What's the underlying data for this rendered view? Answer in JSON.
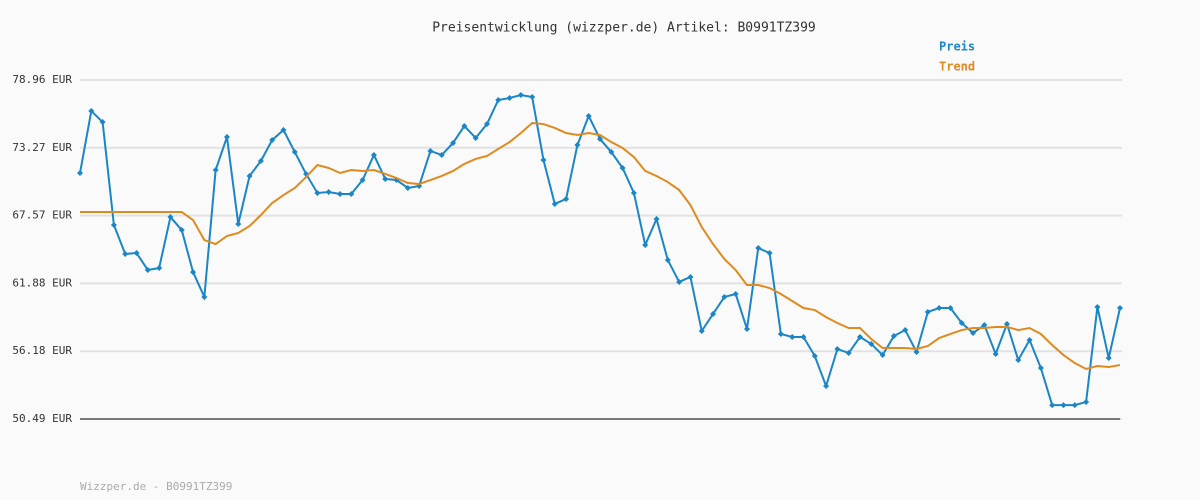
{
  "chart_data": {
    "type": "line",
    "title": "Preisentwicklung (wizzper.de) Artikel: B0991TZ399",
    "footer": "Wizzper.de - B0991TZ399",
    "ylim": [
      50.49,
      78.96
    ],
    "yticks": [
      {
        "value": 50.49,
        "label": "50.49 EUR"
      },
      {
        "value": 56.18,
        "label": "56.18 EUR"
      },
      {
        "value": 61.88,
        "label": "61.88 EUR"
      },
      {
        "value": 67.57,
        "label": "67.57 EUR"
      },
      {
        "value": 73.27,
        "label": "73.27 EUR"
      },
      {
        "value": 78.96,
        "label": "78.96 EUR"
      }
    ],
    "grid": true,
    "legend": "top-right",
    "series": [
      {
        "name": "Preis",
        "color": "#1a86c8",
        "markers": true,
        "values": [
          71.15,
          76.36,
          75.43,
          66.78,
          64.35,
          64.43,
          63.0,
          63.17,
          67.45,
          66.36,
          62.83,
          60.74,
          71.4,
          74.17,
          66.87,
          70.9,
          72.16,
          73.92,
          74.76,
          72.91,
          71.07,
          69.47,
          69.55,
          69.39,
          69.39,
          70.56,
          72.66,
          70.65,
          70.56,
          69.89,
          70.06,
          73.0,
          72.66,
          73.67,
          75.1,
          74.09,
          75.26,
          77.28,
          77.45,
          77.7,
          77.53,
          72.24,
          68.55,
          68.97,
          73.5,
          75.94,
          74.0,
          72.91,
          71.57,
          69.47,
          65.1,
          67.29,
          63.84,
          62.0,
          62.42,
          57.88,
          59.31,
          60.74,
          60.99,
          58.05,
          64.85,
          64.43,
          57.63,
          57.38,
          57.38,
          55.78,
          53.26,
          56.37,
          56.03,
          57.38,
          56.79,
          55.86,
          57.46,
          57.96,
          56.12,
          59.48,
          59.81,
          59.81,
          58.55,
          57.71,
          58.38,
          55.95,
          58.47,
          55.44,
          57.12,
          54.77,
          51.66,
          51.66,
          51.66,
          51.92,
          59.9,
          55.61,
          59.81
        ]
      },
      {
        "name": "Trend",
        "color": "#e08a1e",
        "markers": false,
        "values": [
          67.87,
          67.87,
          67.87,
          67.87,
          67.87,
          67.87,
          67.87,
          67.87,
          67.87,
          67.87,
          67.2,
          65.52,
          65.18,
          65.86,
          66.11,
          66.7,
          67.62,
          68.63,
          69.3,
          69.89,
          70.81,
          71.82,
          71.57,
          71.15,
          71.4,
          71.32,
          71.4,
          71.07,
          70.73,
          70.31,
          70.23,
          70.56,
          70.9,
          71.32,
          71.91,
          72.33,
          72.58,
          73.17,
          73.75,
          74.51,
          75.35,
          75.26,
          74.93,
          74.51,
          74.34,
          74.51,
          74.34,
          73.75,
          73.25,
          72.49,
          71.32,
          70.9,
          70.39,
          69.72,
          68.46,
          66.61,
          65.18,
          63.93,
          63.0,
          61.74,
          61.74,
          61.49,
          60.99,
          60.4,
          59.81,
          59.64,
          59.05,
          58.55,
          58.13,
          58.13,
          57.21,
          56.45,
          56.45,
          56.45,
          56.37,
          56.62,
          57.29,
          57.63,
          57.96,
          58.13,
          58.13,
          58.22,
          58.22,
          57.96,
          58.13,
          57.63,
          56.7,
          55.86,
          55.19,
          54.69,
          54.94,
          54.86,
          55.02
        ]
      }
    ]
  }
}
